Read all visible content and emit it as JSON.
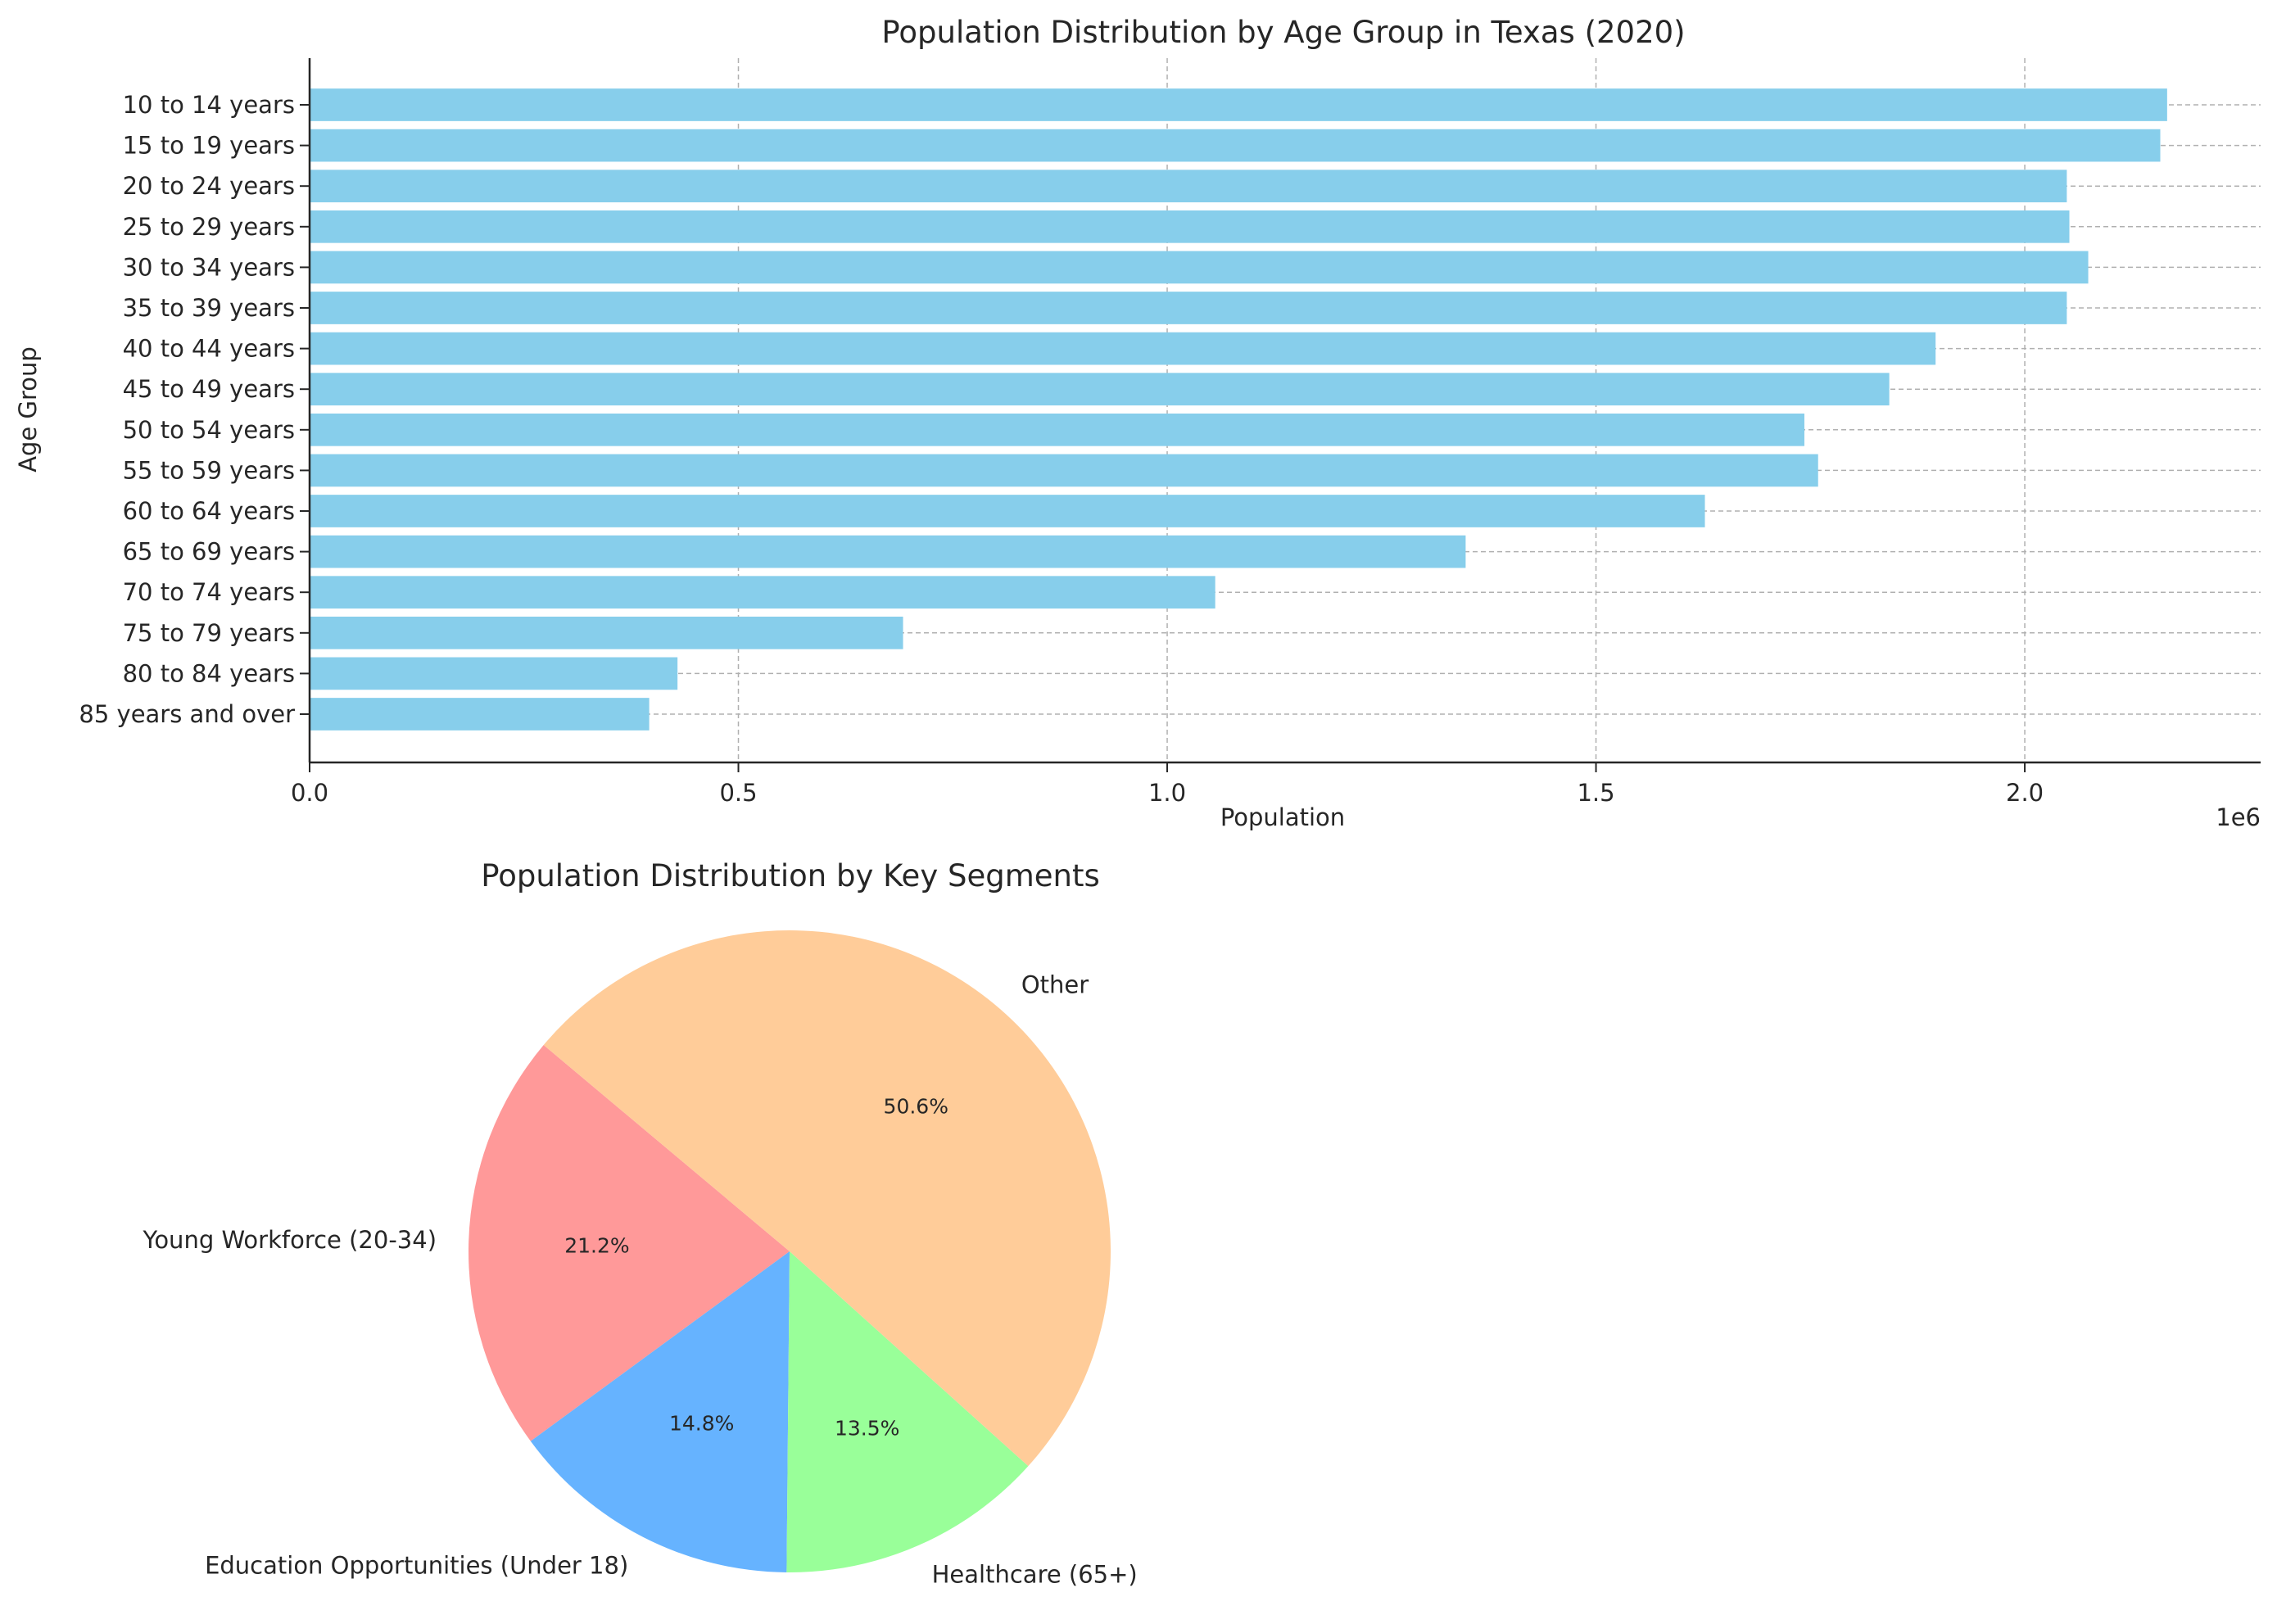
{
  "chart_data": [
    {
      "type": "bar",
      "orientation": "horizontal",
      "title": "Population Distribution by Age Group in Texas (2020)",
      "xlabel": "Population",
      "ylabel": "Age Group",
      "x_offset_label": "1e6",
      "xlim": [
        0,
        2275000
      ],
      "xticks": [
        "0.0",
        "0.5",
        "1.0",
        "1.5",
        "2.0"
      ],
      "grid": true,
      "bar_color": "#87CEEB",
      "categories": [
        "10 to 14 years",
        "15 to 19 years",
        "20 to 24 years",
        "25 to 29 years",
        "30 to 34 years",
        "35 to 39 years",
        "40 to 44 years",
        "45 to 49 years",
        "50 to 54 years",
        "55 to 59 years",
        "60 to 64 years",
        "65 to 69 years",
        "70 to 74 years",
        "75 to 79 years",
        "80 to 84 years",
        "85 years and over"
      ],
      "values": [
        2166000,
        2158000,
        2049000,
        2052000,
        2074000,
        2049000,
        1896000,
        1842000,
        1743000,
        1759000,
        1627000,
        1348000,
        1056000,
        692000,
        429000,
        396000
      ]
    },
    {
      "type": "pie",
      "title": "Population Distribution by Key Segments",
      "start_angle": 140,
      "labels": [
        "Young Workforce (20-34)",
        "Education Opportunities (Under 18)",
        "Healthcare (65+)",
        "Other"
      ],
      "values": [
        21.2,
        14.8,
        13.5,
        50.6
      ],
      "pct_labels": [
        "21.2%",
        "14.8%",
        "13.5%",
        "50.6%"
      ],
      "colors": [
        "#ff9999",
        "#66b3ff",
        "#99ff99",
        "#ffcc99"
      ]
    }
  ]
}
